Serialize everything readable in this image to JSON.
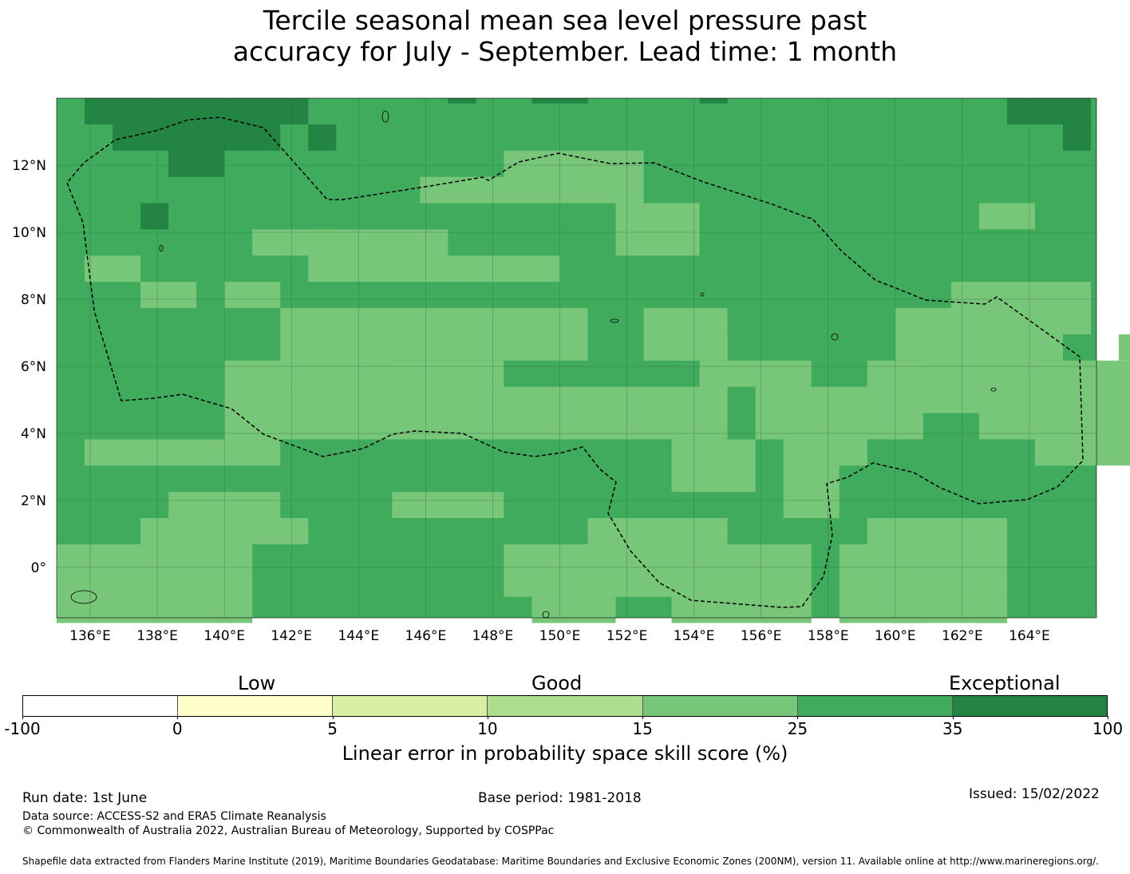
{
  "title": {
    "line1": "Tercile seasonal mean sea level pressure past",
    "line2": "accuracy for July - September. Lead time: 1 month"
  },
  "map": {
    "lon_labels": [
      "136°E",
      "138°E",
      "140°E",
      "142°E",
      "144°E",
      "146°E",
      "148°E",
      "150°E",
      "152°E",
      "154°E",
      "156°E",
      "158°E",
      "160°E",
      "162°E",
      "164°E"
    ],
    "lat_labels": [
      "12°N",
      "10°N",
      "8°N",
      "6°N",
      "4°N",
      "2°N",
      "0°"
    ],
    "lon_values": [
      136,
      138,
      140,
      142,
      144,
      146,
      148,
      150,
      152,
      154,
      156,
      158,
      160,
      162,
      164
    ],
    "lat_values": [
      12,
      10,
      8,
      6,
      4,
      2,
      0
    ],
    "extent": {
      "lon_min": 135,
      "lon_max": 166,
      "lat_min": -1.5,
      "lat_max": 14
    },
    "grid_spacing_deg": 0.833,
    "cell_categories": {
      "25-35": "#41ab5d",
      "15-25": "#78c679",
      "35-100": "#238443"
    },
    "colors": {
      "dominant": "#41ab5d",
      "light": "#78c679",
      "dark": "#238443",
      "eez_boundary": "#000000"
    },
    "eez_boundary_style": "dashed"
  },
  "colorbar": {
    "category_labels": [
      "Low",
      "Good",
      "Exceptional"
    ],
    "ticks": [
      "-100",
      "0",
      "5",
      "10",
      "15",
      "25",
      "35",
      "100"
    ],
    "colors": [
      "#ffffff",
      "#ffffcc",
      "#d9f0a3",
      "#addd8e",
      "#78c679",
      "#41ab5d",
      "#238443"
    ],
    "title": "Linear error in probability space skill score (%)"
  },
  "footer": {
    "run_date": "Run date: 1st June",
    "base_period": "Base period: 1981-2018",
    "issued": "Issued: 15/02/2022",
    "data_source": "Data source: ACCESS-S2 and ERA5 Climate Reanalysis",
    "copyright": "© Commonwealth of Australia 2022, Australian Bureau of Meteorology, Supported by COSPPac",
    "shapefile": "Shapefile data extracted from Flanders Marine Institute (2019), Maritime Boundaries Geodatabase: Maritime Boundaries and Exclusive Economic Zones (200NM), version 11. Available online at http://www.marineregions.org/."
  }
}
